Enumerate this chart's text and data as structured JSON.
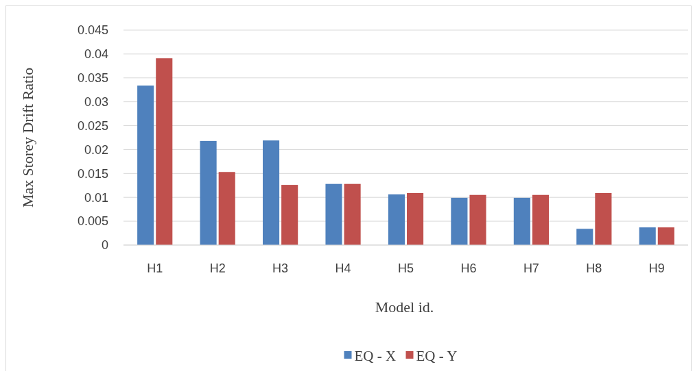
{
  "chart_data": {
    "type": "bar",
    "xlabel": "Model id.",
    "ylabel": "Max Storey Drift Ratio",
    "categories": [
      "H1",
      "H2",
      "H3",
      "H4",
      "H5",
      "H6",
      "H7",
      "H8",
      "H9"
    ],
    "series": [
      {
        "name": "EQ - X",
        "color": "#4f81bd",
        "values": [
          0.0334,
          0.0218,
          0.0219,
          0.0128,
          0.0106,
          0.0099,
          0.0099,
          0.0034,
          0.0037
        ]
      },
      {
        "name": "EQ - Y",
        "color": "#c0504d",
        "values": [
          0.0391,
          0.0153,
          0.0126,
          0.0128,
          0.0109,
          0.0105,
          0.0105,
          0.0109,
          0.0037
        ]
      }
    ],
    "ylim": [
      0,
      0.045
    ],
    "yticks": [
      0,
      0.005,
      0.01,
      0.015,
      0.02,
      0.025,
      0.03,
      0.035,
      0.04,
      0.045
    ],
    "grid": "y",
    "legend": "bottom"
  }
}
